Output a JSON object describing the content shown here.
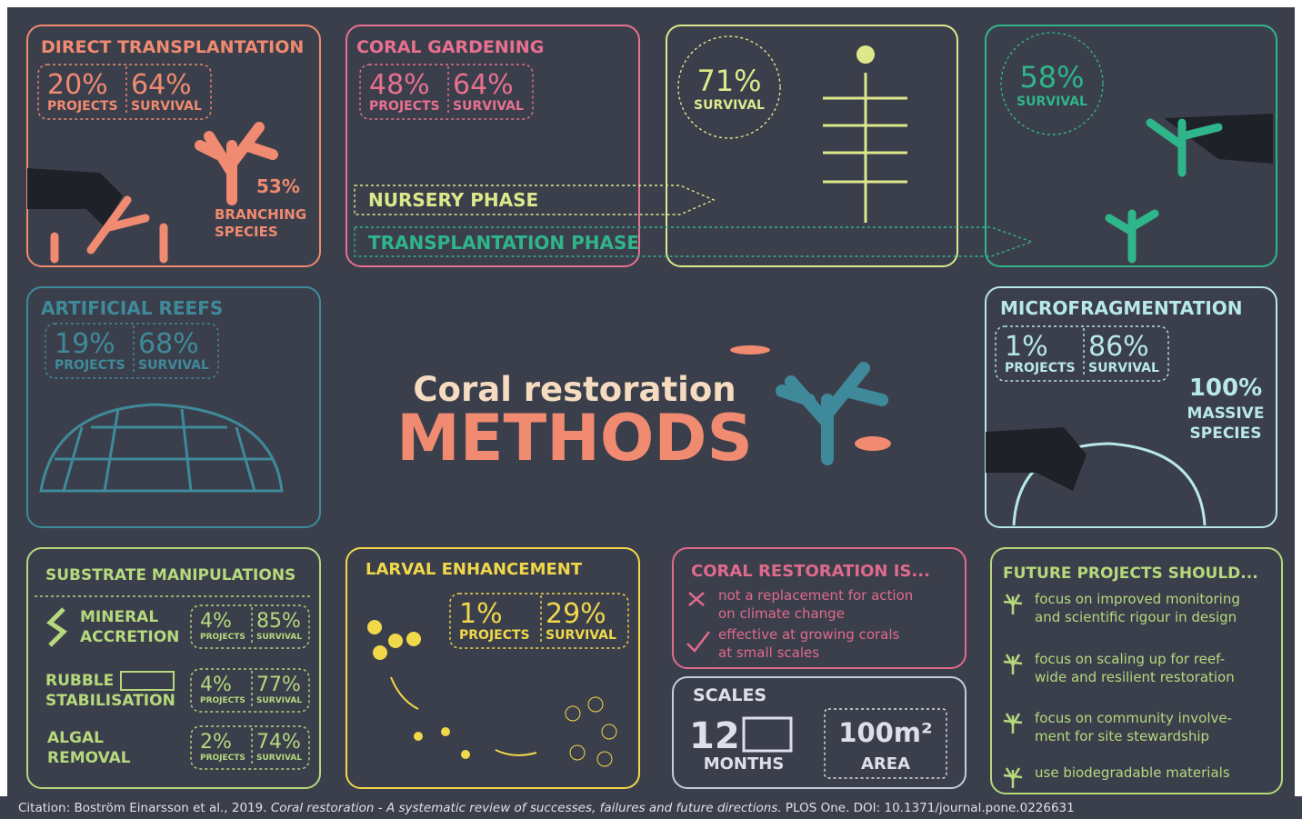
{
  "title": {
    "line1": "Coral restoration",
    "line2": "METHODS"
  },
  "direct_transplantation": {
    "title": "DIRECT TRANSPLANTATION",
    "stats": [
      [
        "20%",
        "PROJECTS"
      ],
      [
        "64%",
        "SURVIVAL"
      ]
    ],
    "branching": [
      "53%",
      "BRANCHING",
      "SPECIES"
    ]
  },
  "coral_gardening": {
    "title": "CORAL GARDENING",
    "stats": [
      [
        "48%",
        "PROJECTS"
      ],
      [
        "64%",
        "SURVIVAL"
      ]
    ],
    "phases": [
      "NURSERY PHASE",
      "TRANSPLANTATION PHASE"
    ]
  },
  "nursery": {
    "stat": [
      "71%",
      "SURVIVAL"
    ]
  },
  "outplant": {
    "stat": [
      "58%",
      "SURVIVAL"
    ]
  },
  "artificial_reefs": {
    "title": "ARTIFICIAL REEFS",
    "stats": [
      [
        "19%",
        "PROJECTS"
      ],
      [
        "68%",
        "SURVIVAL"
      ]
    ]
  },
  "microfragmentation": {
    "title": "MICROFRAGMENTATION",
    "stats": [
      [
        "1%",
        "PROJECTS"
      ],
      [
        "86%",
        "SURVIVAL"
      ]
    ],
    "massive": [
      "100%",
      "MASSIVE",
      "SPECIES"
    ]
  },
  "substrate": {
    "title": "SUBSTRATE MANIPULATIONS",
    "rows": [
      {
        "name": [
          "MINERAL",
          "ACCRETION"
        ],
        "stats": [
          [
            "4%",
            "PROJECTS"
          ],
          [
            "85%",
            "SURVIVAL"
          ]
        ]
      },
      {
        "name": [
          "RUBBLE",
          "STABILISATION"
        ],
        "stats": [
          [
            "4%",
            "PROJECTS"
          ],
          [
            "77%",
            "SURVIVAL"
          ]
        ]
      },
      {
        "name": [
          "ALGAL",
          "REMOVAL"
        ],
        "stats": [
          [
            "2%",
            "PROJECTS"
          ],
          [
            "74%",
            "SURVIVAL"
          ]
        ]
      }
    ]
  },
  "larval": {
    "title": "LARVAL ENHANCEMENT",
    "stats": [
      [
        "1%",
        "PROJECTS"
      ],
      [
        "29%",
        "SURVIVAL"
      ]
    ]
  },
  "restoration_is": {
    "title": "CORAL RESTORATION IS...",
    "items": [
      [
        "not a replacement for action",
        "on climate change"
      ],
      [
        "effective at growing corals",
        "at small scales"
      ]
    ]
  },
  "scales": {
    "title": "SCALES",
    "items": [
      [
        "12",
        "MONTHS"
      ],
      [
        "100m²",
        "AREA"
      ]
    ]
  },
  "future": {
    "title": "FUTURE PROJECTS SHOULD...",
    "items": [
      [
        "focus on improved monitoring",
        "and scientific rigour in design"
      ],
      [
        "focus on scaling up for reef-",
        "wide and resilient restoration"
      ],
      [
        "focus on community involve-",
        "ment for site stewardship"
      ],
      [
        "use biodegradable materials"
      ]
    ]
  },
  "citation": {
    "pre": "Citation: Boström Einarsson et al., 2019. ",
    "italic": "Coral restoration - A systematic review of successes, failures and future directions.",
    "post": " PLOS One. DOI: 10.1371/journal.pone.0226631"
  }
}
